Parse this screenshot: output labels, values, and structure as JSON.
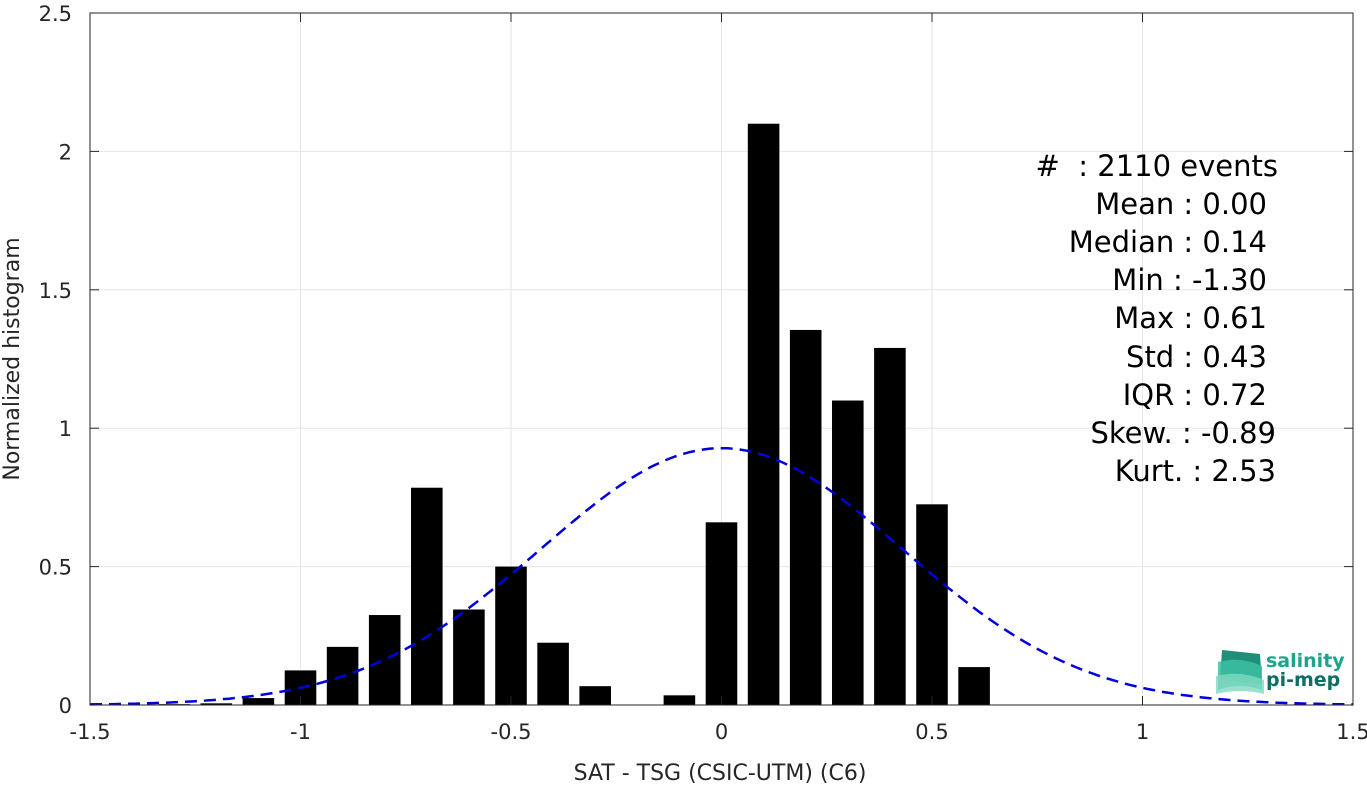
{
  "chart_data": {
    "type": "bar",
    "xlabel": "SAT - TSG (CSIC-UTM) (C6)",
    "ylabel": "Normalized histogram",
    "xlim": [
      -1.5,
      1.5
    ],
    "ylim": [
      0,
      2.5
    ],
    "xticks": [
      -1.5,
      -1,
      -0.5,
      0,
      0.5,
      1,
      1.5
    ],
    "xtick_labels": [
      "-1.5",
      "-1",
      "-0.5",
      "0",
      "0.5",
      "1",
      "1.5"
    ],
    "yticks": [
      0,
      0.5,
      1,
      1.5,
      2,
      2.5
    ],
    "ytick_labels": [
      "0",
      "0.5",
      "1",
      "1.5",
      "2",
      "2.5"
    ],
    "grid": true,
    "bin_width": 0.1,
    "bar_width_fraction": 0.75,
    "bars": {
      "x": [
        -1.3,
        -1.2,
        -1.1,
        -1.0,
        -0.9,
        -0.8,
        -0.7,
        -0.6,
        -0.5,
        -0.4,
        -0.3,
        -0.2,
        -0.1,
        0.0,
        0.1,
        0.2,
        0.3,
        0.4,
        0.5,
        0.6
      ],
      "values": [
        0.003,
        0.006,
        0.025,
        0.125,
        0.21,
        0.325,
        0.785,
        0.345,
        0.5,
        0.225,
        0.068,
        0.0,
        0.035,
        0.66,
        2.1,
        1.355,
        1.1,
        1.29,
        0.725,
        0.137
      ],
      "color": "#000000"
    },
    "fit_curve": {
      "style": "dashed",
      "color": "#0000dd",
      "mean": 0.0,
      "std": 0.43,
      "x_range": [
        -1.5,
        1.5
      ]
    },
    "stats": [
      {
        "label": "#  : 2110 events"
      },
      {
        "label": "Mean : 0.00"
      },
      {
        "label": "Median : 0.14"
      },
      {
        "label": "Min : -1.30"
      },
      {
        "label": "Max : 0.61"
      },
      {
        "label": "Std : 0.43"
      },
      {
        "label": "IQR : 0.72"
      },
      {
        "label": "Skew. : -0.89"
      },
      {
        "label": "Kurt. : 2.53"
      }
    ]
  },
  "logo": {
    "line1": "salinity",
    "line2": "pi-mep",
    "color1": "#1aa58c",
    "color2": "#0f6e62"
  }
}
